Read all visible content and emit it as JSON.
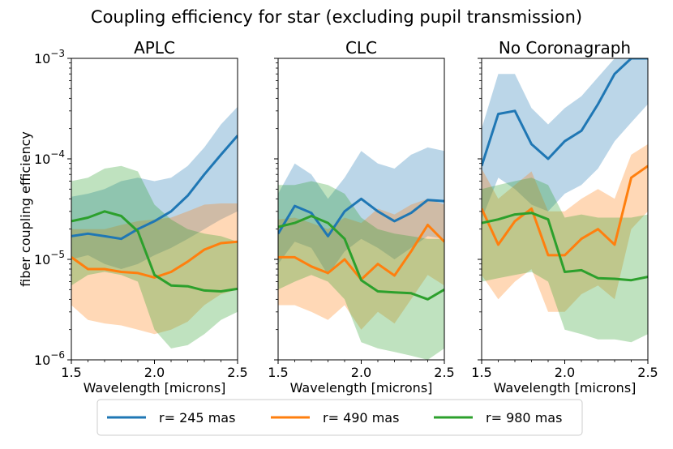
{
  "figure_title": "Coupling efficiency for star (excluding pupil transmission)",
  "colors": {
    "r245": "#1f77b4",
    "r490": "#ff7f0e",
    "r980": "#2ca02c"
  },
  "chart_data": [
    {
      "type": "line",
      "title": "APLC",
      "xlabel": "Wavelength [microns]",
      "ylabel": "fiber coupling efficiency",
      "yscale": "log",
      "xlim": [
        1.5,
        2.5
      ],
      "ylim": [
        1e-06,
        0.001
      ],
      "xticks": [
        "1.5",
        "2.0",
        "2.5"
      ],
      "x": [
        1.5,
        1.6,
        1.7,
        1.8,
        1.9,
        2.0,
        2.1,
        2.2,
        2.3,
        2.4,
        2.5
      ],
      "series": [
        {
          "name": "r= 245 mas",
          "values": [
            1.7e-05,
            1.8e-05,
            1.7e-05,
            1.6e-05,
            2e-05,
            2.4e-05,
            3e-05,
            4.3e-05,
            7e-05,
            0.00011,
            0.00017
          ],
          "band_low": [
            1e-05,
            1.1e-05,
            9e-06,
            8e-06,
            9e-06,
            1.1e-05,
            1.3e-05,
            1.6e-05,
            2e-05,
            2.5e-05,
            3e-05
          ],
          "band_high": [
            4.2e-05,
            4.5e-05,
            5e-05,
            6e-05,
            6.5e-05,
            6e-05,
            6.5e-05,
            8.5e-05,
            0.00013,
            0.00022,
            0.00033
          ]
        },
        {
          "name": "r= 490 mas",
          "values": [
            1.05e-05,
            8e-06,
            8e-06,
            7.5e-06,
            7.3e-06,
            6.6e-06,
            7.5e-06,
            9.5e-06,
            1.25e-05,
            1.45e-05,
            1.5e-05
          ],
          "band_low": [
            3.5e-06,
            2.5e-06,
            2.3e-06,
            2.2e-06,
            2e-06,
            1.8e-06,
            2e-06,
            2.4e-06,
            3.5e-06,
            4.5e-06,
            5e-06
          ],
          "band_high": [
            2e-05,
            2e-05,
            2e-05,
            2.2e-05,
            2.4e-05,
            2.5e-05,
            2.6e-05,
            3e-05,
            3.5e-05,
            3.6e-05,
            3.6e-05
          ]
        },
        {
          "name": "r= 980 mas",
          "values": [
            2.4e-05,
            2.6e-05,
            3e-05,
            2.7e-05,
            1.9e-05,
            7e-06,
            5.5e-06,
            5.4e-06,
            4.9e-06,
            4.8e-06,
            5.1e-06
          ],
          "band_low": [
            5.5e-06,
            7e-06,
            7.5e-06,
            7e-06,
            6e-06,
            2e-06,
            1.3e-06,
            1.4e-06,
            1.8e-06,
            2.5e-06,
            3e-06
          ],
          "band_high": [
            6e-05,
            6.5e-05,
            8e-05,
            8.5e-05,
            7.5e-05,
            3.5e-05,
            2.5e-05,
            2e-05,
            1.8e-05,
            1.7e-05,
            1.5e-05
          ]
        }
      ]
    },
    {
      "type": "line",
      "title": "CLC",
      "xlabel": "Wavelength [microns]",
      "yscale": "log",
      "xlim": [
        1.5,
        2.5
      ],
      "ylim": [
        1e-06,
        0.001
      ],
      "xticks": [
        "1.5",
        "2.0",
        "2.5"
      ],
      "x": [
        1.5,
        1.6,
        1.7,
        1.8,
        1.9,
        2.0,
        2.1,
        2.2,
        2.3,
        2.4,
        2.5
      ],
      "series": [
        {
          "name": "r= 245 mas",
          "values": [
            1.8e-05,
            3.4e-05,
            2.9e-05,
            1.7e-05,
            3e-05,
            4e-05,
            3e-05,
            2.4e-05,
            2.9e-05,
            3.9e-05,
            3.8e-05
          ],
          "band_low": [
            9e-06,
            1.5e-05,
            1.3e-05,
            7e-06,
            1.2e-05,
            1.6e-05,
            1.3e-05,
            1e-05,
            1.3e-05,
            1.7e-05,
            1.6e-05
          ],
          "band_high": [
            4.5e-05,
            9e-05,
            7e-05,
            4e-05,
            6.5e-05,
            0.00012,
            9e-05,
            8e-05,
            0.00011,
            0.00013,
            0.00012
          ]
        },
        {
          "name": "r= 490 mas",
          "values": [
            1.05e-05,
            1.05e-05,
            8.5e-06,
            7.3e-06,
            1e-05,
            6.3e-06,
            9e-06,
            6.9e-06,
            1.2e-05,
            2.2e-05,
            1.5e-05
          ],
          "band_low": [
            3.5e-06,
            3.5e-06,
            3e-06,
            2.5e-06,
            3.5e-06,
            2e-06,
            3e-06,
            2.3e-06,
            4e-06,
            7e-06,
            5.5e-06
          ],
          "band_high": [
            2.5e-05,
            2.6e-05,
            2.3e-05,
            2e-05,
            2.6e-05,
            2.3e-05,
            3.2e-05,
            2.8e-05,
            3.5e-05,
            4e-05,
            3.5e-05
          ]
        },
        {
          "name": "r= 980 mas",
          "values": [
            2.1e-05,
            2.3e-05,
            2.7e-05,
            2.3e-05,
            1.6e-05,
            6.2e-06,
            4.8e-06,
            4.7e-06,
            4.6e-06,
            4e-06,
            5e-06
          ],
          "band_low": [
            5e-06,
            6e-06,
            7e-06,
            6e-06,
            4e-06,
            1.5e-06,
            1.3e-06,
            1.2e-06,
            1.1e-06,
            1e-06,
            1.3e-06
          ],
          "band_high": [
            5.5e-05,
            5.5e-05,
            6e-05,
            5.5e-05,
            4.5e-05,
            2.6e-05,
            2e-05,
            1.8e-05,
            1.7e-05,
            1.6e-05,
            1.6e-05
          ]
        }
      ]
    },
    {
      "type": "line",
      "title": "No Coronagraph",
      "xlabel": "Wavelength [microns]",
      "yscale": "log",
      "xlim": [
        1.5,
        2.5
      ],
      "ylim": [
        1e-06,
        0.001
      ],
      "xticks": [
        "1.5",
        "2.0",
        "2.5"
      ],
      "x": [
        1.5,
        1.6,
        1.7,
        1.8,
        1.9,
        2.0,
        2.1,
        2.2,
        2.3,
        2.4,
        2.5
      ],
      "series": [
        {
          "name": "r= 245 mas",
          "values": [
            8.5e-05,
            0.00028,
            0.0003,
            0.00014,
            0.0001,
            0.00015,
            0.00019,
            0.00035,
            0.0007,
            0.001,
            0.001
          ],
          "band_low": [
            2.5e-05,
            6.5e-05,
            5e-05,
            3.5e-05,
            3e-05,
            4.5e-05,
            5.5e-05,
            8e-05,
            0.00015,
            0.00023,
            0.00035
          ],
          "band_high": [
            0.0002,
            0.0007,
            0.0007,
            0.00032,
            0.00022,
            0.00032,
            0.00042,
            0.00065,
            0.001,
            0.001,
            0.001
          ]
        },
        {
          "name": "r= 490 mas",
          "values": [
            3.2e-05,
            1.4e-05,
            2.4e-05,
            3.2e-05,
            1.1e-05,
            1.1e-05,
            1.6e-05,
            2e-05,
            1.4e-05,
            6.5e-05,
            8.5e-05
          ],
          "band_low": [
            7e-06,
            4e-06,
            6e-06,
            8e-06,
            3e-06,
            3e-06,
            4.5e-06,
            5.5e-06,
            4e-06,
            2e-05,
            3e-05
          ],
          "band_high": [
            8e-05,
            4e-05,
            5.5e-05,
            7.5e-05,
            3e-05,
            3e-05,
            4e-05,
            5e-05,
            4e-05,
            0.00011,
            0.00014
          ]
        },
        {
          "name": "r= 980 mas",
          "values": [
            2.3e-05,
            2.5e-05,
            2.8e-05,
            2.9e-05,
            2.5e-05,
            7.5e-06,
            7.8e-06,
            6.5e-06,
            6.4e-06,
            6.2e-06,
            6.7e-06
          ],
          "band_low": [
            6e-06,
            6.5e-06,
            7e-06,
            7.5e-06,
            6e-06,
            2e-06,
            1.8e-06,
            1.6e-06,
            1.6e-06,
            1.5e-06,
            1.8e-06
          ],
          "band_high": [
            5e-05,
            5.5e-05,
            6e-05,
            6.5e-05,
            5.5e-05,
            2.6e-05,
            2.8e-05,
            2.6e-05,
            2.6e-05,
            2.6e-05,
            2.8e-05
          ]
        }
      ]
    }
  ]
}
